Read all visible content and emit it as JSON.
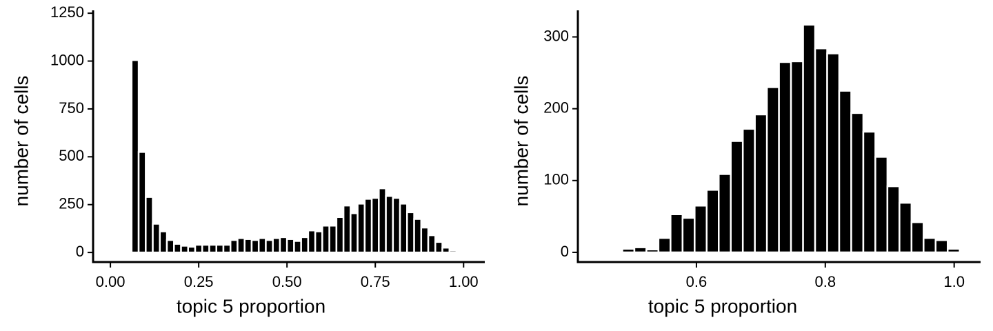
{
  "chart_data": [
    {
      "type": "histogram",
      "xlabel": "topic 5 proportion",
      "ylabel": "number of cells",
      "color": "#000000",
      "bins": [
        0.06,
        0.08,
        0.1,
        0.12,
        0.14,
        0.16,
        0.18,
        0.2,
        0.22,
        0.24,
        0.26,
        0.28,
        0.3,
        0.32,
        0.34,
        0.36,
        0.38,
        0.4,
        0.42,
        0.44,
        0.46,
        0.48,
        0.5,
        0.52,
        0.54,
        0.56,
        0.58,
        0.6,
        0.62,
        0.64,
        0.66,
        0.68,
        0.7,
        0.72,
        0.74,
        0.76,
        0.78,
        0.8,
        0.82,
        0.84,
        0.86,
        0.88,
        0.9,
        0.92,
        0.94,
        0.96,
        0.98,
        1.0
      ],
      "values": [
        1005,
        525,
        290,
        150,
        110,
        65,
        45,
        35,
        30,
        40,
        40,
        40,
        40,
        40,
        65,
        75,
        70,
        65,
        75,
        65,
        75,
        80,
        70,
        60,
        80,
        115,
        110,
        140,
        140,
        185,
        245,
        205,
        255,
        280,
        285,
        335,
        295,
        285,
        255,
        210,
        175,
        130,
        90,
        55,
        25,
        10,
        5
      ],
      "xlim": [
        -0.049,
        1.06
      ],
      "ylim": [
        -50,
        1265
      ],
      "xticks": [
        {
          "value": 0,
          "label": "0.00"
        },
        {
          "value": 0.25,
          "label": "0.25"
        },
        {
          "value": 0.5,
          "label": "0.50"
        },
        {
          "value": 0.75,
          "label": "0.75"
        },
        {
          "value": 1,
          "label": "1.00"
        }
      ],
      "yticks": [
        0,
        250,
        500,
        750,
        1000,
        1250
      ]
    },
    {
      "type": "histogram",
      "xlabel": "topic 5 proportion",
      "ylabel": "number of cells",
      "color": "#000000",
      "bins": [
        0.485,
        0.5037,
        0.5224,
        0.5411,
        0.5598,
        0.5785,
        0.5972,
        0.6159,
        0.6346,
        0.6533,
        0.672,
        0.6907,
        0.7094,
        0.7281,
        0.7468,
        0.7655,
        0.7842,
        0.8029,
        0.8216,
        0.8403,
        0.859,
        0.8777,
        0.8964,
        0.9151,
        0.9338,
        0.9525,
        0.9712,
        0.9899,
        1.0086
      ],
      "values": [
        5,
        7,
        4,
        20,
        53,
        48,
        65,
        87,
        109,
        155,
        172,
        192,
        230,
        265,
        266,
        317,
        284,
        277,
        225,
        194,
        168,
        133,
        92,
        69,
        42,
        20,
        17,
        5
      ],
      "xlim": [
        0.416,
        1.041
      ],
      "ylim": [
        -13.5,
        337
      ],
      "xticks": [
        0.6,
        0.8,
        {
          "value": 1,
          "label": "1.0"
        }
      ],
      "yticks": [
        0,
        100,
        200,
        300
      ]
    }
  ]
}
